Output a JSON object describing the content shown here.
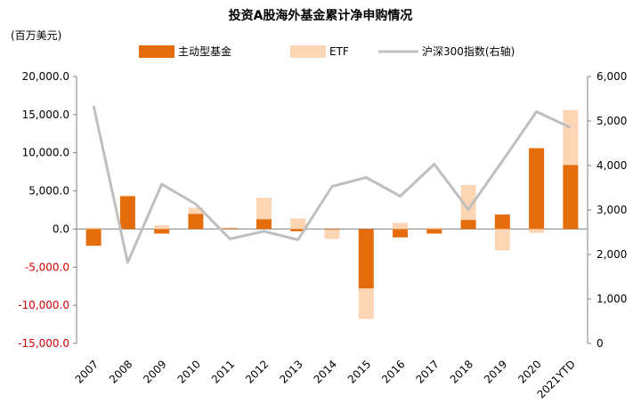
{
  "chart_data": {
    "type": "bar",
    "title": "投资A股海外基金累计净申购情况",
    "ylabel": "(百万美元)",
    "categories": [
      "2007",
      "2008",
      "2009",
      "2010",
      "2011",
      "2012",
      "2013",
      "2014",
      "2015",
      "2016",
      "2017",
      "2018",
      "2019",
      "2020",
      "2021YTD"
    ],
    "ylim": [
      -15000,
      20000
    ],
    "yticks": [
      "20,000.0",
      "15,000.0",
      "10,000.0",
      "5,000.0",
      "0.0",
      "-5,000.0",
      "-10,000.0",
      "-15,000.0"
    ],
    "yticks_values": [
      20000,
      15000,
      10000,
      5000,
      0,
      -5000,
      -10000,
      -15000
    ],
    "y2lim": [
      0,
      6000
    ],
    "y2ticks": [
      "6,000",
      "5,000",
      "4,000",
      "3,000",
      "2,000",
      "1,000",
      "0"
    ],
    "y2ticks_values": [
      6000,
      5000,
      4000,
      3000,
      2000,
      1000,
      0
    ],
    "series": [
      {
        "name": "主动型基金",
        "type": "bar",
        "stack": "a",
        "color": "#E46C0A",
        "values": [
          -2200,
          4300,
          -600,
          2000,
          100,
          1300,
          -300,
          -100,
          -7800,
          -1100,
          -600,
          1200,
          1900,
          10600,
          8400
        ]
      },
      {
        "name": "ETF",
        "type": "bar",
        "stack": "a",
        "color": "#FCD5B5",
        "values": [
          200,
          100,
          500,
          800,
          100,
          2800,
          1400,
          -1200,
          -4000,
          800,
          200,
          4600,
          -2800,
          -500,
          7200
        ]
      },
      {
        "name": "沪深300指数(右轴)",
        "type": "line",
        "axis": "right",
        "color": "#BFBFBF",
        "values": [
          5340,
          1820,
          3580,
          3130,
          2350,
          2520,
          2330,
          3530,
          3730,
          3310,
          4030,
          3010,
          4100,
          5210,
          4850
        ]
      }
    ]
  }
}
